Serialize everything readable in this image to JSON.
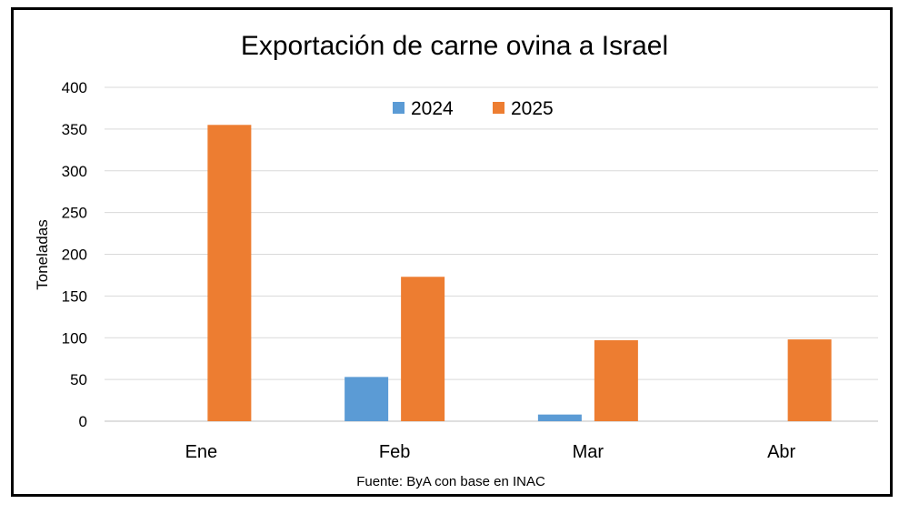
{
  "chart_data": {
    "type": "bar",
    "title": "Exportación de carne ovina a Israel",
    "ylabel": "Toneladas",
    "xlabel": "",
    "categories": [
      "Ene",
      "Feb",
      "Mar",
      "Abr"
    ],
    "series": [
      {
        "name": "2024",
        "color": "#5b9bd5",
        "values": [
          0,
          53,
          8,
          0
        ]
      },
      {
        "name": "2025",
        "color": "#ed7d31",
        "values": [
          355,
          173,
          97,
          98
        ]
      }
    ],
    "ylim": [
      0,
      400
    ],
    "yticks": [
      0,
      50,
      100,
      150,
      200,
      250,
      300,
      350,
      400
    ],
    "grid": true,
    "legend_position": "top-center",
    "source": "Fuente: ByA con base en INAC"
  }
}
